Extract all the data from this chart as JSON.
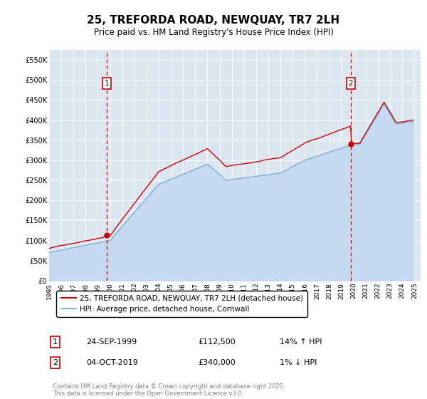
{
  "title": "25, TREFORDA ROAD, NEWQUAY, TR7 2LH",
  "subtitle": "Price paid vs. HM Land Registry's House Price Index (HPI)",
  "background_color": "#dce6f1",
  "plot_bg_color": "#dce6f1",
  "ylim": [
    0,
    575000
  ],
  "yticks": [
    0,
    50000,
    100000,
    150000,
    200000,
    250000,
    300000,
    350000,
    400000,
    450000,
    500000,
    550000
  ],
  "ytick_labels": [
    "£0",
    "£50K",
    "£100K",
    "£150K",
    "£200K",
    "£250K",
    "£300K",
    "£350K",
    "£400K",
    "£450K",
    "£500K",
    "£550K"
  ],
  "xlim_start": 1995.0,
  "xlim_end": 2025.5,
  "xticks": [
    1995,
    1996,
    1997,
    1998,
    1999,
    2000,
    2001,
    2002,
    2003,
    2004,
    2005,
    2006,
    2007,
    2008,
    2009,
    2010,
    2011,
    2012,
    2013,
    2014,
    2015,
    2016,
    2017,
    2018,
    2019,
    2020,
    2021,
    2022,
    2023,
    2024,
    2025
  ],
  "red_line_color": "#cc0000",
  "blue_line_color": "#7bafd4",
  "blue_fill_color": "#c5d9f0",
  "dashed_line_color": "#cc0000",
  "marker1_x": 1999.73,
  "marker1_y": 112500,
  "marker2_x": 2019.76,
  "marker2_y": 340000,
  "legend_label1": "25, TREFORDA ROAD, NEWQUAY, TR7 2LH (detached house)",
  "legend_label2": "HPI: Average price, detached house, Cornwall",
  "table_row1_num": "1",
  "table_row1_date": "24-SEP-1999",
  "table_row1_price": "£112,500",
  "table_row1_hpi": "14% ↑ HPI",
  "table_row2_num": "2",
  "table_row2_date": "04-OCT-2019",
  "table_row2_price": "£340,000",
  "table_row2_hpi": "1% ↓ HPI",
  "footer": "Contains HM Land Registry data © Crown copyright and database right 2025.\nThis data is licensed under the Open Government Licence v3.0."
}
